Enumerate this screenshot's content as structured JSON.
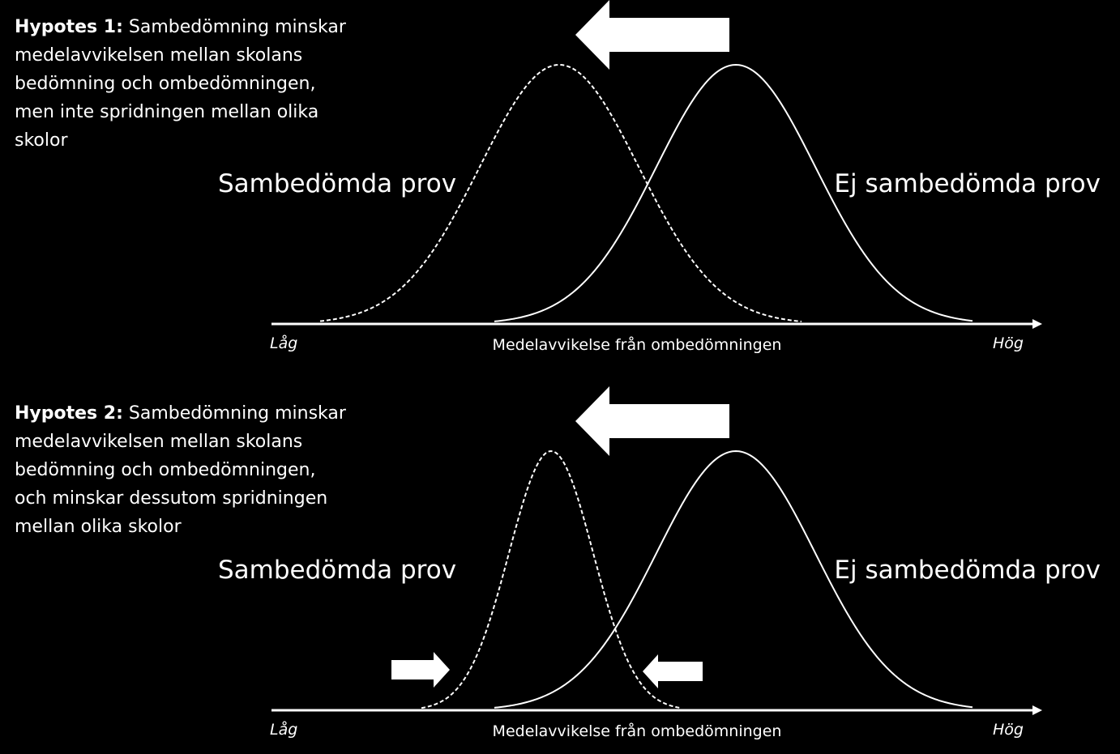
{
  "panels": [
    {
      "hypothesis": {
        "label": "Hypotes 1:",
        "lines": [
          "Sambedömning minskar",
          "medelavvikelsen mellan skolans",
          "bedömning och ombedömningen,",
          "men inte spridningen mellan olika",
          "skolor"
        ]
      },
      "left_curve_label": "Sambedömda prov",
      "right_curve_label": "Ej sambedömda prov",
      "axis_low": "Låg",
      "axis_high": "Hög",
      "axis_title": "Medelavvikelse från ombedömningen"
    },
    {
      "hypothesis": {
        "label": "Hypotes 2:",
        "lines": [
          "Sambedömning minskar",
          "medelavvikelsen mellan skolans",
          "bedömning och ombedömningen,",
          "och minskar dessutom spridningen",
          "mellan olika skolor"
        ]
      },
      "left_curve_label": "Sambedömda prov",
      "right_curve_label": "Ej sambedömda prov",
      "axis_low": "Låg",
      "axis_high": "Hög",
      "axis_title": "Medelavvikelse från ombedömningen"
    }
  ]
}
